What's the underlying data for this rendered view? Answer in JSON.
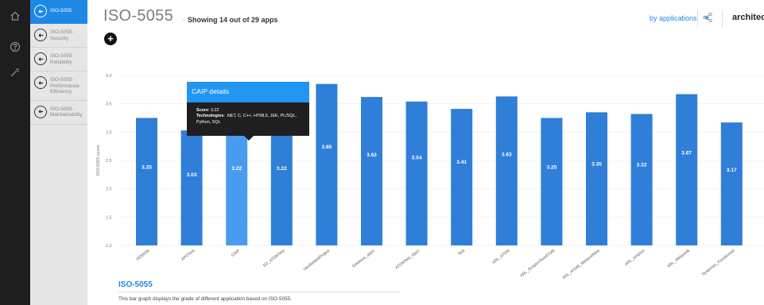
{
  "rail": {
    "icons": [
      "home-icon",
      "help-icon",
      "wand-icon"
    ]
  },
  "sidebar": {
    "items": [
      {
        "label": "ISO-5055",
        "active": true
      },
      {
        "label": "ISO-5055-Security",
        "active": false
      },
      {
        "label": "ISO-5055-Reliability",
        "active": false
      },
      {
        "label": "ISO-5055-Performance-Efficiency",
        "active": false
      },
      {
        "label": "ISO-5055-Maintainability",
        "active": false
      }
    ]
  },
  "header": {
    "title": "ISO-5055",
    "dash": "-",
    "count_text": "Showing 14 out of 29 apps",
    "add_label": "+",
    "view_select": "by applications",
    "brand": "architect"
  },
  "tooltip": {
    "title": "CAIP details",
    "score_label": "Score",
    "score_value": ": 3.22",
    "tech_label": "Technologies",
    "tech_value": ": .NET, C, C++, HTML5, JEE, PL/SQL, Python, SQL"
  },
  "description": {
    "title": "ISO-5055",
    "text": "This bar graph displays the grade of different application based on ISO-5055."
  },
  "colors": {
    "bar": "#2f7fd8",
    "bar_highlight": "#4a9bf0",
    "accent": "#1e88e5"
  },
  "chart_data": {
    "type": "bar",
    "categories": [
      "ISO5055",
      "APOTest",
      "CAIP",
      "ED_ATDMTest",
      "VanillaWebProject",
      "Greenius_app1",
      "ATDMTest_App1",
      "Test",
      "ARL_ATDM",
      "ARL_SimplonTestATDM",
      "ARL_ATDM_WebportNew",
      "ARL_simplon",
      "ARL_Webport6",
      "Systemes_Fonctionnel"
    ],
    "values": [
      3.25,
      3.03,
      3.22,
      3.22,
      3.85,
      3.62,
      3.54,
      3.41,
      3.63,
      3.25,
      3.35,
      3.32,
      3.67,
      3.17
    ],
    "value_labels": [
      "3.25",
      "3.03",
      "3.22",
      "3.22",
      "3.85",
      "3.62",
      "3.54",
      "3.41",
      "3.63",
      "3.25",
      "3.35",
      "3.32",
      "3.67",
      "3.17"
    ],
    "highlighted": "CAIP",
    "ylabel": "ISO-5055 score",
    "ylim": [
      1.0,
      4.0
    ],
    "yticks": [
      "1.0",
      "1.5",
      "2.0",
      "2.5",
      "3.0",
      "3.5",
      "4.0"
    ],
    "grid": true
  }
}
